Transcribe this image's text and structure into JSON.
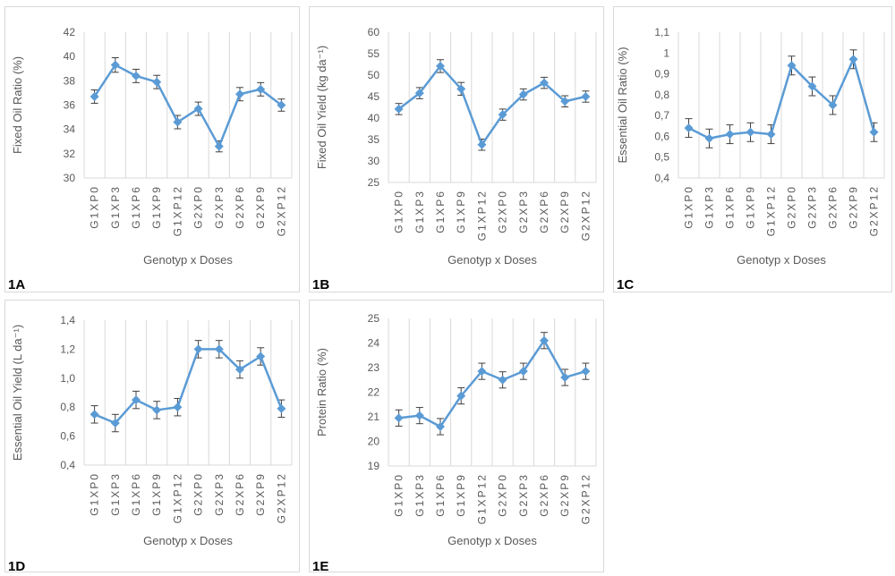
{
  "colors": {
    "series": "#5b9bd5",
    "marker": "#5b9bd5",
    "errorbar": "#404040",
    "grid": "#d9d9d9",
    "text": "#595959"
  },
  "chart_data": [
    {
      "id": "1A",
      "type": "line",
      "panel_label": "1A",
      "categories": [
        "G1XP0",
        "G1XP3",
        "G1XP6",
        "G1XP9",
        "G1XP12",
        "G2XP0",
        "G2XP3",
        "G2XP6",
        "G2XP9",
        "G2XP12"
      ],
      "values": [
        36.7,
        39.3,
        38.4,
        37.9,
        34.6,
        35.7,
        32.6,
        36.9,
        37.3,
        36.0
      ],
      "errors": [
        0.55,
        0.6,
        0.55,
        0.55,
        0.55,
        0.55,
        0.45,
        0.55,
        0.55,
        0.5
      ],
      "xlabel": "Genotyp x Doses",
      "ylabel": "Fixed Oil Ratio (%)",
      "ylim": [
        30,
        42
      ],
      "yticks": [
        "30",
        "32",
        "34",
        "36",
        "38",
        "40",
        "42"
      ],
      "grid": "vertical"
    },
    {
      "id": "1B",
      "type": "line",
      "panel_label": "1B",
      "categories": [
        "G1XP0",
        "G1XP3",
        "G1XP6",
        "G1XP9",
        "G1XP12",
        "G2XP0",
        "G2XP3",
        "G2XP6",
        "G2XP9",
        "G2XP12"
      ],
      "values": [
        42.1,
        45.8,
        52.1,
        46.8,
        33.8,
        40.8,
        45.5,
        48.2,
        43.9,
        45.0
      ],
      "errors": [
        1.3,
        1.3,
        1.5,
        1.5,
        1.3,
        1.3,
        1.3,
        1.3,
        1.3,
        1.3
      ],
      "xlabel": "Genotyp x Doses",
      "ylabel": "Fixed Oil Yield (kg da⁻¹)",
      "ylim": [
        25,
        60
      ],
      "yticks": [
        "25",
        "30",
        "35",
        "40",
        "45",
        "50",
        "55",
        "60"
      ],
      "grid": "vertical"
    },
    {
      "id": "1C",
      "type": "line",
      "panel_label": "1C",
      "categories": [
        "G1XP0",
        "G1XP3",
        "G1XP6",
        "G1XP9",
        "G1XP12",
        "G2XP0",
        "G2XP3",
        "G2XP6",
        "G2XP9",
        "G2XP12"
      ],
      "values": [
        0.64,
        0.59,
        0.61,
        0.62,
        0.61,
        0.94,
        0.84,
        0.75,
        0.97,
        0.62
      ],
      "errors": [
        0.045,
        0.045,
        0.045,
        0.045,
        0.045,
        0.045,
        0.045,
        0.045,
        0.045,
        0.045
      ],
      "xlabel": "Genotyp x Doses",
      "ylabel": "Essential Oil Ratio (%)",
      "ylim": [
        0.4,
        1.1
      ],
      "yticks": [
        "0,4",
        "0,5",
        "0,6",
        "0,7",
        "0,8",
        "0,9",
        "1",
        "1,1"
      ],
      "grid": "vertical"
    },
    {
      "id": "1D",
      "type": "line",
      "panel_label": "1D",
      "categories": [
        "G1XP0",
        "G1XP3",
        "G1XP6",
        "G1XP9",
        "G1XP12",
        "G2XP0",
        "G2XP3",
        "G2XP6",
        "G2XP9",
        "G2XP12"
      ],
      "values": [
        0.75,
        0.69,
        0.85,
        0.78,
        0.8,
        1.2,
        1.2,
        1.06,
        1.15,
        0.79
      ],
      "errors": [
        0.06,
        0.06,
        0.06,
        0.06,
        0.06,
        0.06,
        0.06,
        0.06,
        0.06,
        0.06
      ],
      "xlabel": "Genotyp x Doses",
      "ylabel": "Essential Oil Yield (L da⁻¹)",
      "ylim": [
        0.4,
        1.4
      ],
      "yticks": [
        "0,4",
        "0,6",
        "0,8",
        "1,0",
        "1,2",
        "1,4"
      ],
      "grid": "vertical"
    },
    {
      "id": "1E",
      "type": "line",
      "panel_label": "1E",
      "categories": [
        "G1XP0",
        "G1XP3",
        "G1XP6",
        "G1XP9",
        "G1XP12",
        "G2XP0",
        "G2XP3",
        "G2XP6",
        "G2XP9",
        "G2XP12"
      ],
      "values": [
        20.95,
        21.05,
        20.6,
        21.85,
        22.85,
        22.5,
        22.85,
        24.1,
        22.6,
        22.85
      ],
      "errors": [
        0.33,
        0.33,
        0.33,
        0.33,
        0.33,
        0.33,
        0.33,
        0.33,
        0.33,
        0.33
      ],
      "xlabel": "Genotyp x Doses",
      "ylabel": "Protein Ratio (%)",
      "ylim": [
        19,
        25
      ],
      "yticks": [
        "19",
        "20",
        "21",
        "22",
        "23",
        "24",
        "25"
      ],
      "grid": "vertical"
    }
  ]
}
